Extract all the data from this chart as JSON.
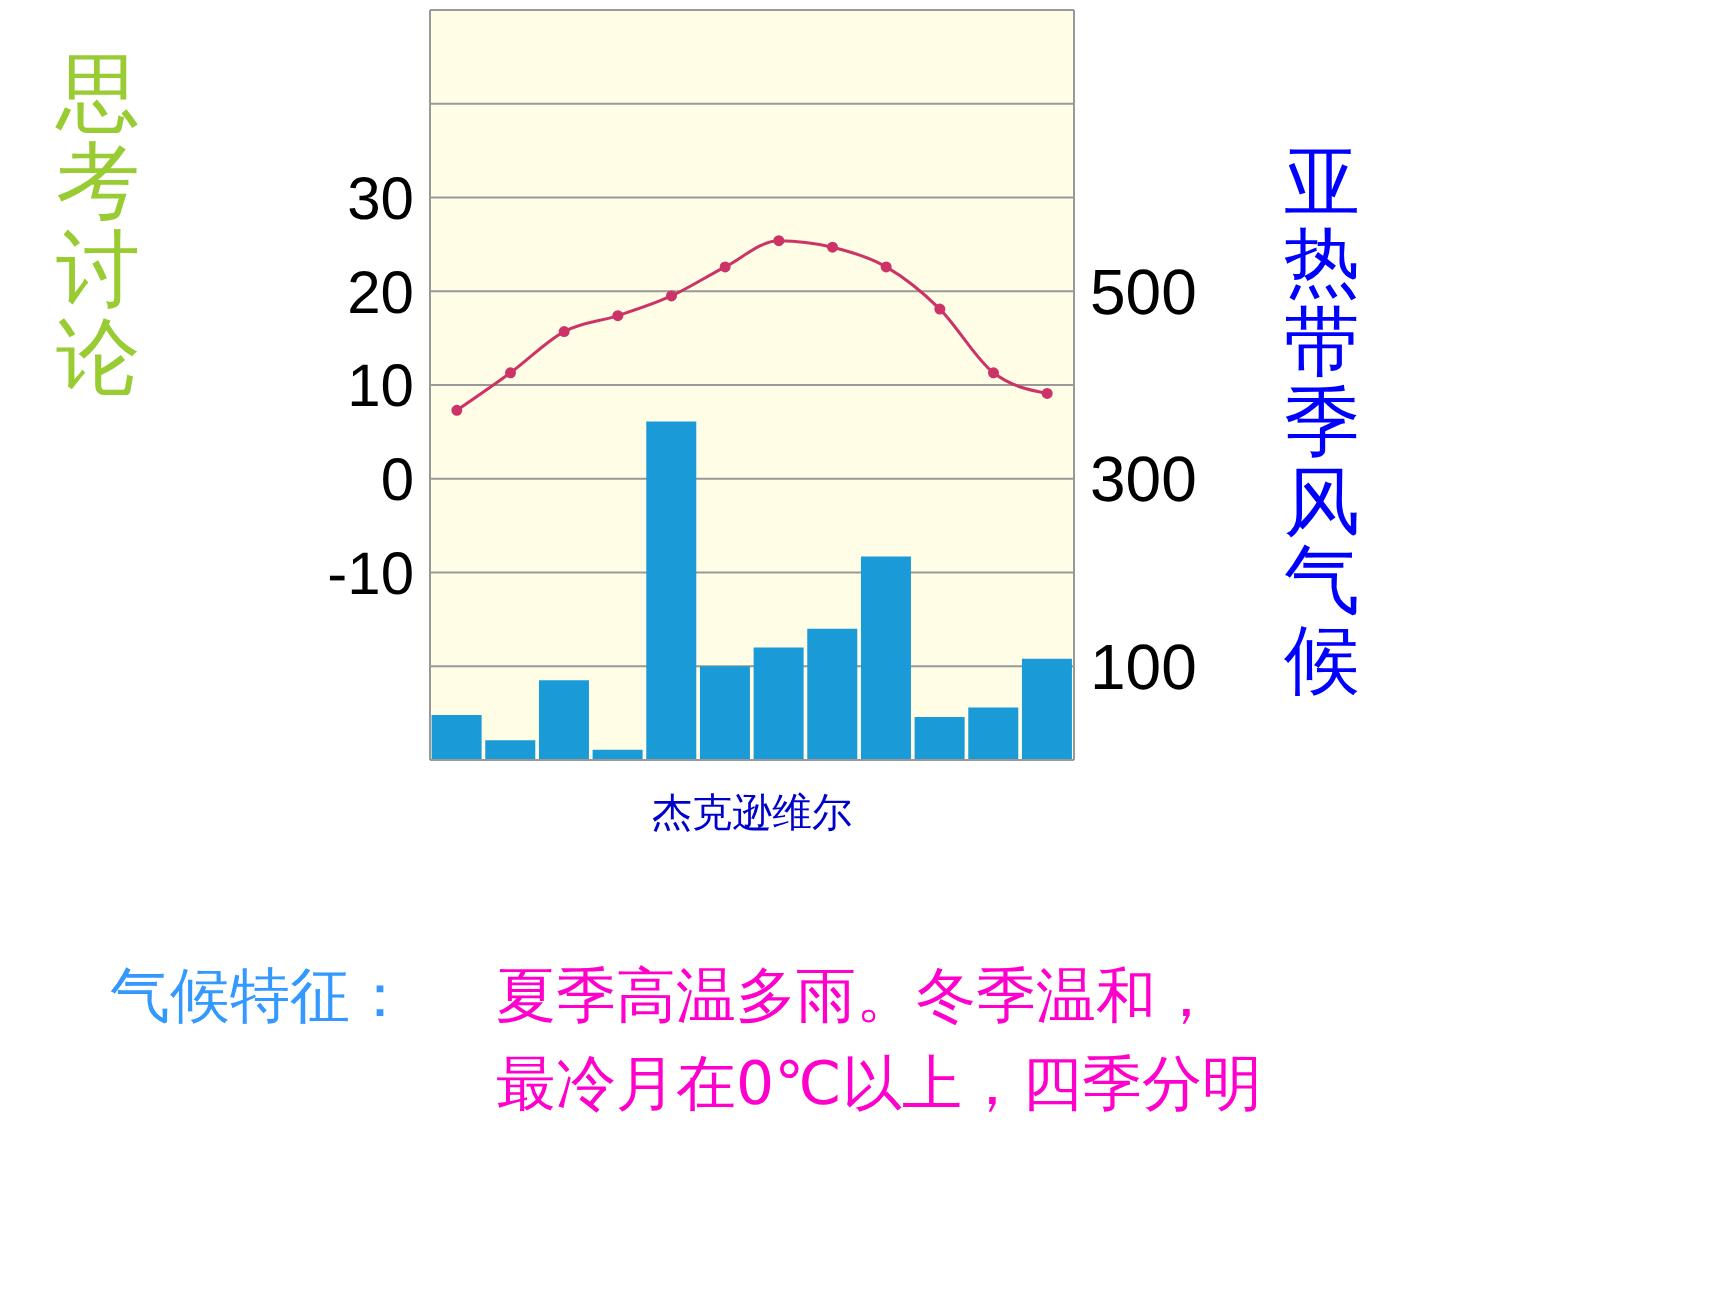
{
  "chart_data": {
    "type": "bar",
    "title": "亚热带季风气候",
    "xlabel": "杰克逊维尔",
    "annotations": [
      "思考讨论",
      "气候特征：",
      "夏季高温多雨。冬季温和，",
      "最冷月在0℃以上，四季分明"
    ],
    "categories": [
      null,
      null,
      null,
      null,
      null,
      null,
      null,
      null,
      null,
      null,
      null,
      null
    ],
    "series": [
      {
        "axis": "y2",
        "color": "#1a9ad6",
        "values": [
          48,
          21,
          85,
          11,
          361,
          100,
          120,
          140,
          217,
          46,
          56,
          108
        ]
      },
      {
        "type": "line",
        "color": "#cc3366",
        "marker": "circle",
        "values": [
          7.3,
          11.3,
          15.7,
          17.4,
          19.5,
          22.6,
          25.4,
          24.7,
          22.6,
          18.1,
          11.3,
          9.1
        ]
      }
    ],
    "ylim": [
      -30,
      50
    ],
    "yticks": [
      {
        "value": -20,
        "label": null
      },
      -10,
      0,
      10,
      20,
      30,
      {
        "value": 40,
        "label": null
      }
    ],
    "y2lim": [
      0,
      800
    ],
    "y2ticks": [
      100,
      300,
      500
    ],
    "grid": "y",
    "legend": false
  }
}
